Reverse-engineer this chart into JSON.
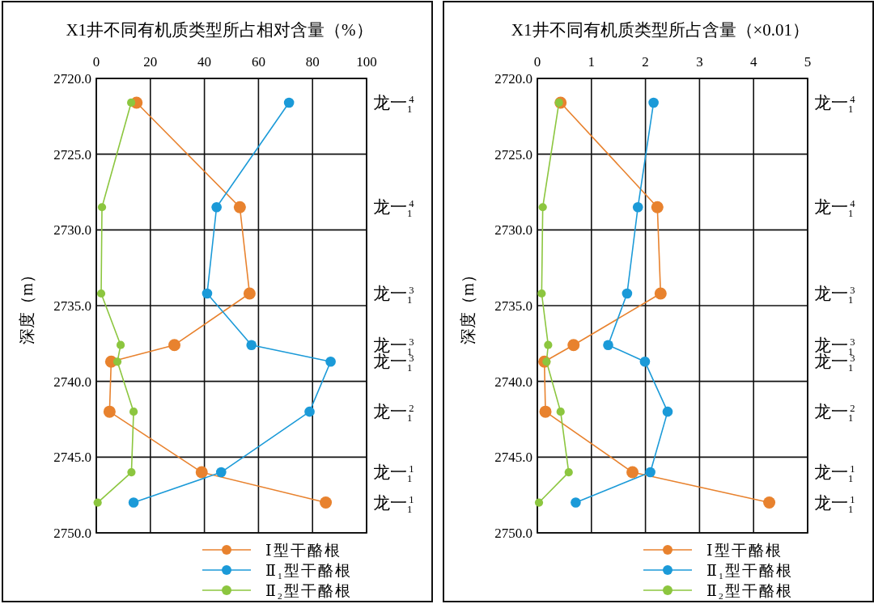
{
  "chart_data": [
    {
      "type": "line",
      "title": "X1井不同有机质类型所占相对含量（%）",
      "ylabel": "深度（m）",
      "xlim": [
        0,
        100
      ],
      "xticks": [
        0,
        20,
        40,
        60,
        80,
        100
      ],
      "ylim": [
        2750,
        2720
      ],
      "yticks": [
        {
          "value": 2720,
          "label": "2720.0"
        },
        {
          "value": 2725,
          "label": "2725.0"
        },
        {
          "value": 2730,
          "label": "2730.0"
        },
        {
          "value": 2735,
          "label": "2735.0"
        },
        {
          "value": 2740,
          "label": "2740.0"
        },
        {
          "value": 2745,
          "label": "2745.0"
        },
        {
          "value": 2750,
          "label": "2750.0"
        }
      ],
      "grid": true,
      "legend": "bottom",
      "marker": "circle",
      "series": [
        {
          "name": "Ⅰ型干酪根",
          "color": "#e8822e",
          "x": [
            14.9,
            53.1,
            56.7,
            28.9,
            5.5,
            4.9,
            39.0,
            84.9
          ],
          "values": [
            2721.6,
            2728.5,
            2734.2,
            2737.6,
            2738.7,
            2742.0,
            2746.0,
            2748.0
          ]
        },
        {
          "name": "Ⅱ$_{1}$型干酪根",
          "color": "#1b9ad8",
          "x": [
            71.3,
            44.5,
            41.0,
            57.4,
            86.7,
            78.9,
            46.2,
            13.8
          ],
          "values": [
            2721.6,
            2728.5,
            2734.2,
            2737.6,
            2738.7,
            2742.0,
            2746.0,
            2748.0
          ]
        },
        {
          "name": "Ⅱ$_{2}$型干酪根",
          "color": "#8cc63f",
          "x": [
            12.9,
            2.1,
            1.8,
            9.0,
            7.8,
            13.8,
            13.0,
            0.5
          ],
          "values": [
            2721.6,
            2728.5,
            2734.2,
            2737.6,
            2738.7,
            2742.0,
            2746.0,
            2748.0
          ]
        }
      ],
      "annotations": [
        "龙一$_{1}$$^{4}$",
        "龙一$_{1}$$^{4}$",
        "龙一$_{1}$$^{3}$",
        "龙一$_{1}$$^{3}$",
        "龙一$_{1}$$^{3}$",
        "龙一$_{1}$$^{2}$",
        "龙一$_{1}$$^{1}$",
        "龙一$_{1}$$^{1}$"
      ]
    },
    {
      "type": "line",
      "title": "X1井不同有机质类型所占含量（×0.01）",
      "ylabel": "深度（m）",
      "xlim": [
        0,
        5
      ],
      "xticks": [
        0,
        1,
        2,
        3,
        4,
        5
      ],
      "ylim": [
        2750,
        2720
      ],
      "yticks": [
        {
          "value": 2720,
          "label": "2720.0"
        },
        {
          "value": 2725,
          "label": "2725.0"
        },
        {
          "value": 2730,
          "label": "2730.0"
        },
        {
          "value": 2735,
          "label": "2735.0"
        },
        {
          "value": 2740,
          "label": "2740.0"
        },
        {
          "value": 2745,
          "label": "2745.0"
        },
        {
          "value": 2750,
          "label": "2750.0"
        }
      ],
      "grid": true,
      "legend": "bottom",
      "marker": "circle",
      "series": [
        {
          "name": "Ⅰ型干酪根",
          "color": "#e8822e",
          "x": [
            0.43,
            2.22,
            2.28,
            0.67,
            0.13,
            0.15,
            1.76,
            4.29
          ],
          "values": [
            2721.6,
            2728.5,
            2734.2,
            2737.6,
            2738.7,
            2742.0,
            2746.0,
            2748.0
          ]
        },
        {
          "name": "Ⅱ$_{1}$型干酪根",
          "color": "#1b9ad8",
          "x": [
            2.15,
            1.86,
            1.66,
            1.31,
            1.99,
            2.41,
            2.09,
            0.71
          ],
          "values": [
            2721.6,
            2728.5,
            2734.2,
            2737.6,
            2738.7,
            2742.0,
            2746.0,
            2748.0
          ]
        },
        {
          "name": "Ⅱ$_{2}$型干酪根",
          "color": "#8cc63f",
          "x": [
            0.4,
            0.1,
            0.08,
            0.2,
            0.17,
            0.43,
            0.58,
            0.03
          ],
          "values": [
            2721.6,
            2728.5,
            2734.2,
            2737.6,
            2738.7,
            2742.0,
            2746.0,
            2748.0
          ]
        }
      ],
      "annotations": [
        "龙一$_{1}$$^{4}$",
        "龙一$_{1}$$^{4}$",
        "龙一$_{1}$$^{3}$",
        "龙一$_{1}$$^{3}$",
        "龙一$_{1}$$^{3}$",
        "龙一$_{1}$$^{2}$",
        "龙一$_{1}$$^{1}$",
        "龙一$_{1}$$^{1}$"
      ]
    }
  ]
}
